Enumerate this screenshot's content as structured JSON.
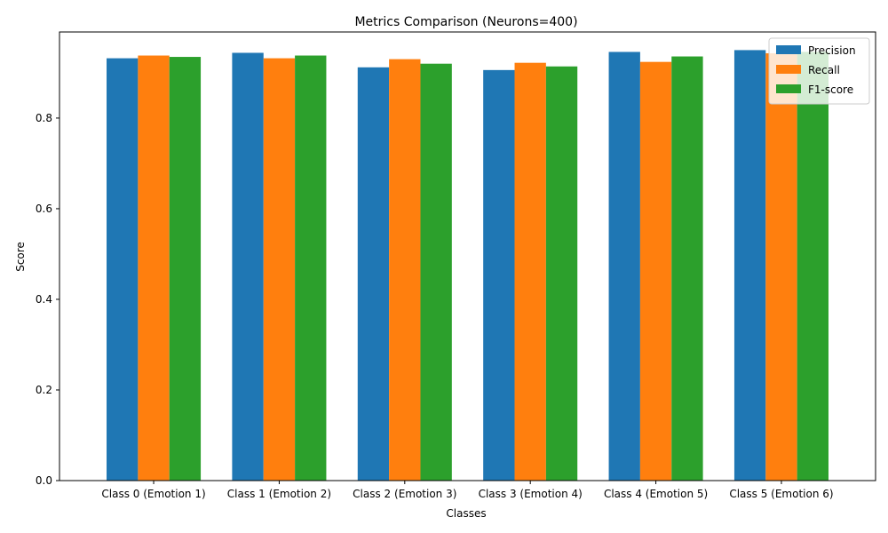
{
  "chart_data": {
    "type": "bar",
    "title": "Metrics Comparison (Neurons=400)",
    "xlabel": "Classes",
    "ylabel": "Score",
    "ylim": [
      0,
      0.99
    ],
    "yticks": [
      "0.0",
      "0.2",
      "0.4",
      "0.6",
      "0.8"
    ],
    "categories": [
      "Class 0 (Emotion 1)",
      "Class 1 (Emotion 2)",
      "Class 2 (Emotion 3)",
      "Class 3 (Emotion 4)",
      "Class 4 (Emotion 5)",
      "Class 5 (Emotion 6)"
    ],
    "series": [
      {
        "name": "Precision",
        "color": "#1f77b4",
        "values": [
          0.932,
          0.944,
          0.912,
          0.906,
          0.946,
          0.95
        ]
      },
      {
        "name": "Recall",
        "color": "#ff7f0e",
        "values": [
          0.938,
          0.932,
          0.93,
          0.922,
          0.924,
          0.943
        ]
      },
      {
        "name": "F1-score",
        "color": "#2ca02c",
        "values": [
          0.935,
          0.938,
          0.92,
          0.914,
          0.936,
          0.946
        ]
      }
    ],
    "legend_position": "top-right",
    "grid": false
  }
}
